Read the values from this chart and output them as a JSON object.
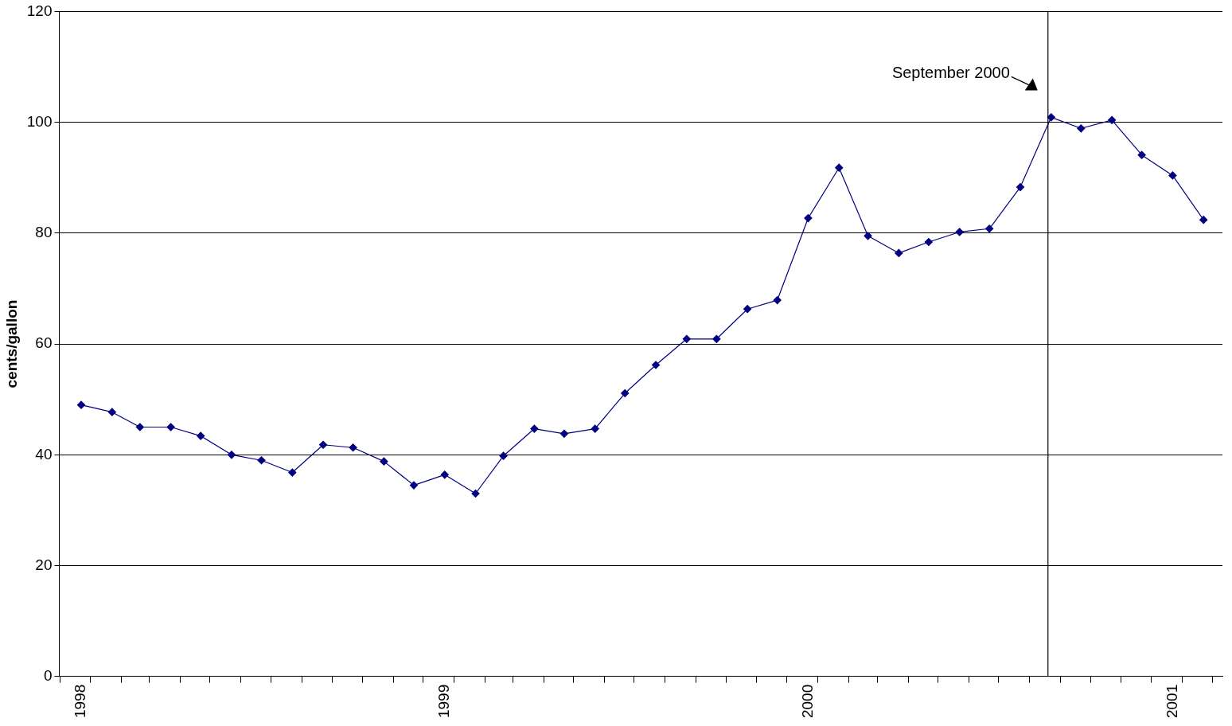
{
  "chart_data": {
    "type": "line",
    "ylabel": "cents/gallon",
    "x": [
      "1998-01",
      "1998-02",
      "1998-03",
      "1998-04",
      "1998-05",
      "1998-06",
      "1998-07",
      "1998-08",
      "1998-09",
      "1998-10",
      "1998-11",
      "1998-12",
      "1999-01",
      "1999-02",
      "1999-03",
      "1999-04",
      "1999-05",
      "1999-06",
      "1999-07",
      "1999-08",
      "1999-09",
      "1999-10",
      "1999-11",
      "1999-12",
      "2000-01",
      "2000-02",
      "2000-03",
      "2000-04",
      "2000-05",
      "2000-06",
      "2000-07",
      "2000-08",
      "2000-09",
      "2000-10",
      "2000-11",
      "2000-12",
      "2001-01",
      "2001-02"
    ],
    "series": [
      {
        "color": "#000080",
        "values": [
          49.0,
          47.7,
          45.0,
          45.0,
          43.4,
          40.0,
          39.0,
          36.8,
          41.8,
          41.3,
          38.8,
          34.5,
          36.4,
          33.0,
          39.8,
          44.7,
          43.8,
          44.7,
          51.1,
          56.2,
          60.9,
          60.9,
          66.3,
          67.9,
          82.7,
          91.8,
          79.5,
          76.4,
          78.4,
          80.2,
          80.8,
          88.3,
          100.9,
          98.9,
          100.4,
          94.1,
          90.4,
          82.4
        ]
      }
    ],
    "xticks": [
      {
        "value": "1998-01",
        "label": "1998"
      },
      {
        "value": "1999-01",
        "label": "1999"
      },
      {
        "value": "2000-01",
        "label": "2000"
      },
      {
        "value": "2001-01",
        "label": "2001"
      }
    ],
    "xlim": [
      "1997-12-10",
      "2001-02-20"
    ],
    "ylim": [
      0,
      120
    ],
    "yticks": [
      0,
      20,
      40,
      60,
      80,
      100,
      120
    ],
    "grid": "y",
    "marker": "diamond",
    "line_style": "solid",
    "legend": false,
    "ref_lines": [
      {
        "axis": "x",
        "value": "2000-09",
        "label": "September 2000",
        "color": "#000000"
      }
    ]
  }
}
